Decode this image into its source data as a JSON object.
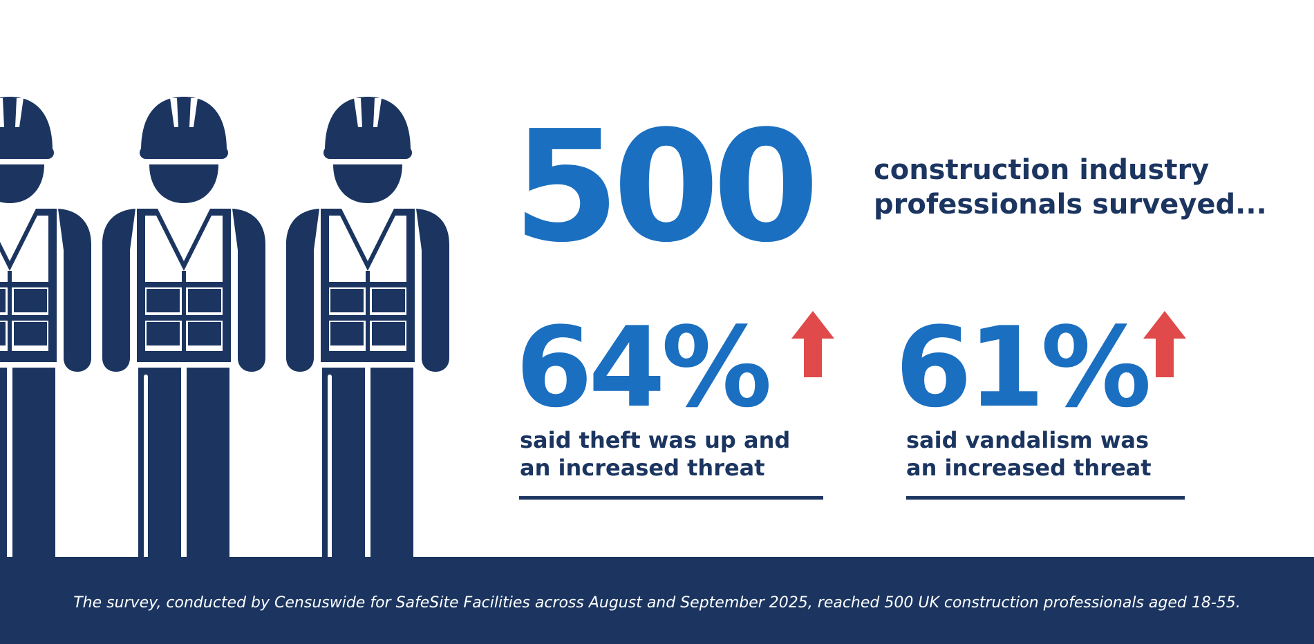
{
  "hero": {
    "number": "500",
    "headline_line1": "construction industry",
    "headline_line2": "professionals surveyed..."
  },
  "stats": [
    {
      "value": "64%",
      "trend_icon": "arrow-up-icon",
      "line1": "said theft was up and",
      "line2": "an increased threat"
    },
    {
      "value": "61%",
      "trend_icon": "arrow-up-icon",
      "line1": "said vandalism was",
      "line2": "an increased threat"
    }
  ],
  "footer": {
    "note": "The survey, conducted by Censuswide for SafeSite Facilities across August and September 2025, reached 500 UK construction professionals aged 18-55."
  },
  "colors": {
    "primary_blue": "#1b6fc0",
    "navy": "#1b3560",
    "accent_red": "#e04a4a",
    "background": "#ffffff"
  },
  "icons": [
    "construction-worker-icon",
    "hard-hat-icon",
    "arrow-up-icon"
  ]
}
